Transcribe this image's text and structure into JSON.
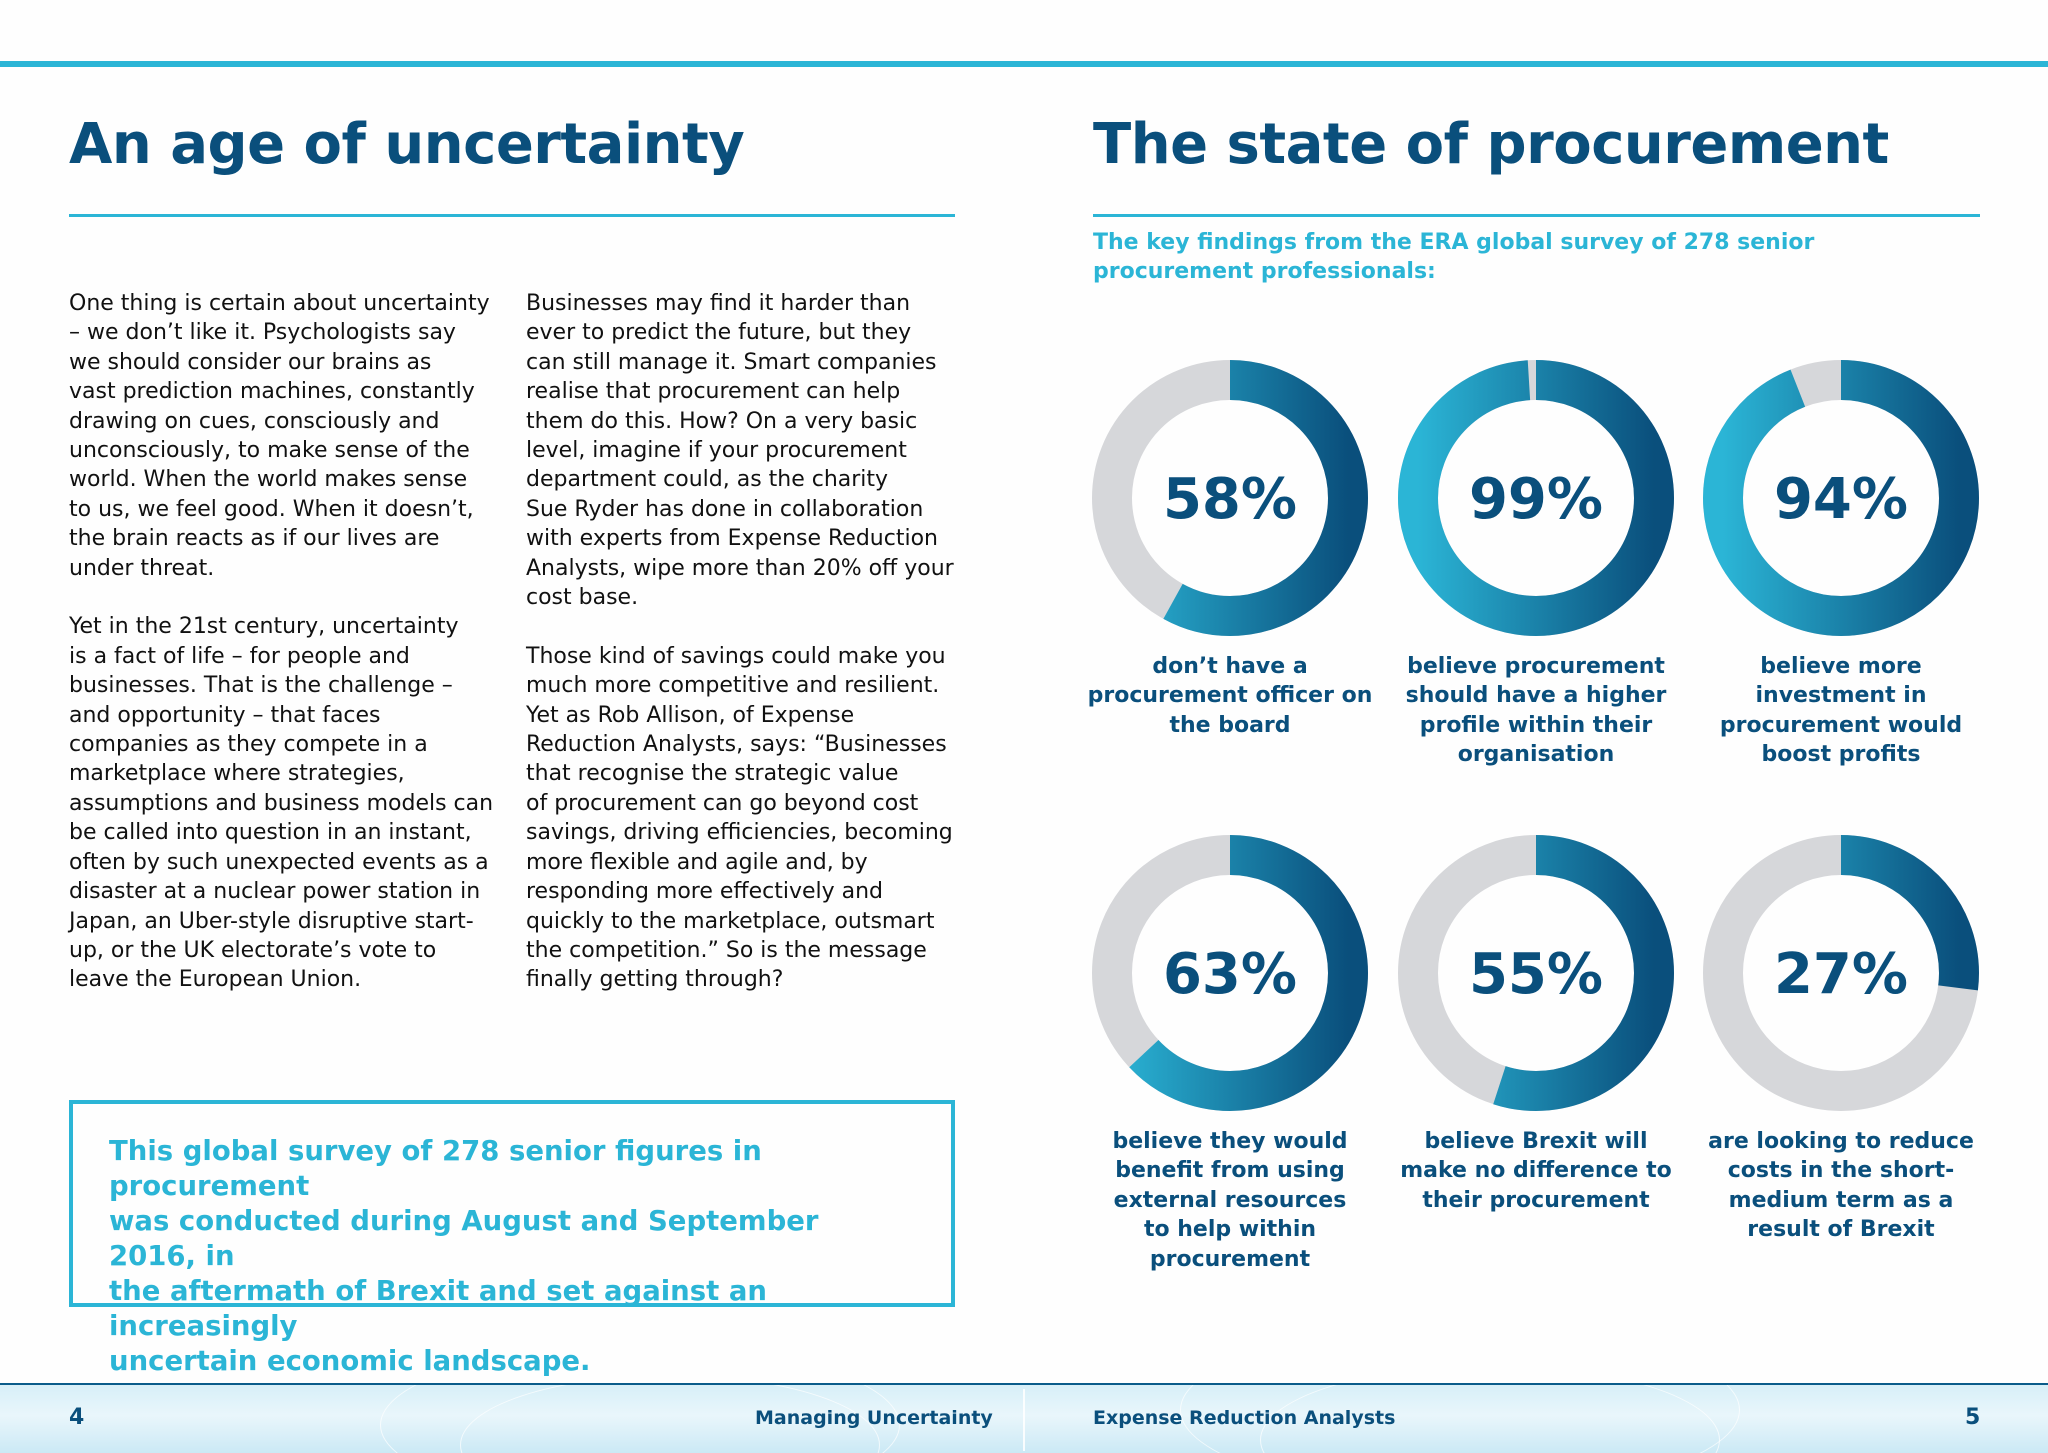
{
  "left": {
    "heading": "An age of uncertainty",
    "column1": [
      "One thing is certain about uncertainty\n– we don’t like it. Psychologists say\nwe should consider our brains as\nvast prediction machines, constantly\ndrawing on cues, consciously and\nunconsciously, to make sense of the\nworld. When the world makes sense\nto us, we feel good. When it doesn’t,\nthe brain reacts as if our lives are\nunder threat.",
      "Yet in the 21st century, uncertainty\nis a fact of life – for people and\nbusinesses. That is the challenge –\nand opportunity – that faces\ncompanies as they compete in a\nmarketplace where strategies,\nassumptions and business models can\nbe called into question in an instant,\noften by such unexpected events as a\ndisaster at a nuclear power station in\nJapan, an Uber-style disruptive start-\nup, or the UK electorate’s vote to\nleave the European Union."
    ],
    "column2": [
      "Businesses may find it harder than\never to predict the future, but they\ncan still manage it. Smart companies\nrealise that procurement can help\nthem do this. How? On a very basic\nlevel, imagine if your procurement\ndepartment could, as the charity\nSue Ryder has done in collaboration\nwith experts from Expense Reduction\nAnalysts, wipe more than 20% off your\ncost base.",
      "Those kind of savings could make you\nmuch more competitive and resilient.\nYet as Rob Allison, of Expense\nReduction Analysts, says: “Businesses\nthat recognise the strategic value\nof procurement can go beyond cost\nsavings, driving efficiencies, becoming\nmore flexible and agile and, by\nresponding more effectively and\nquickly to the marketplace, outsmart\nthe competition.” So is the message\nfinally getting through?"
    ],
    "callout": "This global survey of 278 senior figures in procurement\nwas conducted during August and September 2016, in\nthe aftermath of Brexit and set against an increasingly\nuncertain economic landscape."
  },
  "right": {
    "heading": "The state of procurement",
    "intro": "The key findings from the ERA global survey of 278 senior procurement professionals:"
  },
  "chart_data": [
    {
      "type": "pie",
      "value": 58,
      "label": "58%",
      "description": "don’t have a\nprocurement officer on\nthe board"
    },
    {
      "type": "pie",
      "value": 99,
      "label": "99%",
      "description": "believe procurement\nshould have a higher\nprofile within their\norganisation"
    },
    {
      "type": "pie",
      "value": 94,
      "label": "94%",
      "description": "believe more\ninvestment in\nprocurement would\nboost profits"
    },
    {
      "type": "pie",
      "value": 63,
      "label": "63%",
      "description": "believe they would\nbenefit from using\nexternal resources\nto help within\nprocurement"
    },
    {
      "type": "pie",
      "value": 55,
      "label": "55%",
      "description": "believe Brexit will\nmake no difference  to\ntheir procurement"
    },
    {
      "type": "pie",
      "value": 27,
      "label": "27%",
      "description": "are looking to reduce\ncosts in the short-\nmedium term as a\nresult of Brexit"
    }
  ],
  "colors": {
    "accent": "#2bb5d6",
    "navy": "#0a4f7c",
    "track": "#d6d7da"
  },
  "footer": {
    "page_left": "4",
    "title_left": "Managing Uncertainty",
    "title_right": "Expense Reduction Analysts",
    "page_right": "5"
  }
}
